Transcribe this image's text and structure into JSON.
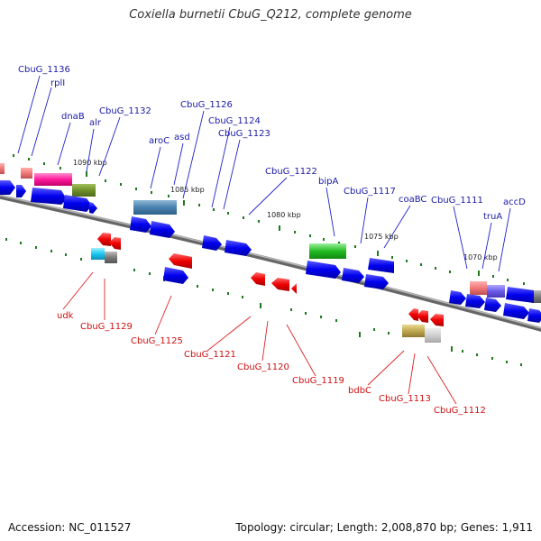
{
  "header": {
    "title": "Coxiella burnetii CbuG_Q212, complete genome"
  },
  "footer": {
    "accession": "Accession: NC_011527",
    "summary": "Topology: circular; Length: 2,008,870 bp; Genes: 1,911"
  },
  "map": {
    "kbp_labels": [
      "1090 kbp",
      "1085 kbp",
      "1080 kbp",
      "1075 kbp",
      "1070 kbp"
    ],
    "top_genes": [
      "CbuG_1136",
      "rplI",
      "dnaB",
      "alr",
      "CbuG_1132",
      "aroC",
      "asd",
      "CbuG_1126",
      "CbuG_1124",
      "CbuG_1123",
      "CbuG_1122",
      "bipA",
      "CbuG_1117",
      "coaBC",
      "CbuG_1111",
      "truA",
      "accD"
    ],
    "bottom_genes": [
      "udk",
      "CbuG_1129",
      "CbuG_1125",
      "CbuG_1121",
      "CbuG_1120",
      "CbuG_1119",
      "bdbC",
      "CbuG_1113",
      "CbuG_1112"
    ],
    "colors": {
      "forward": "#0000ee",
      "reverse": "#ee0000",
      "top_label": "#1a1aa6",
      "bottom_label": "#cc1111",
      "backbone": "#7a7a7a",
      "ticks": "#1f7a1f"
    }
  }
}
